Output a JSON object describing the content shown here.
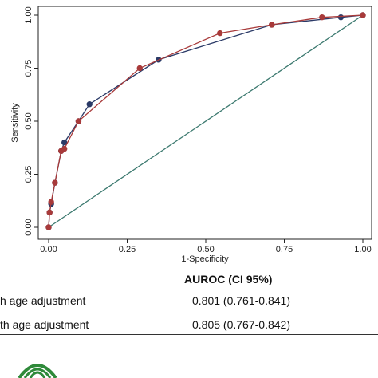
{
  "chart_data": {
    "type": "line",
    "xlabel": "1-Specificity",
    "ylabel": "Sensitivity",
    "xlim": [
      0,
      1
    ],
    "ylim": [
      0,
      1
    ],
    "x_ticks": [
      "0.00",
      "0.25",
      "0.50",
      "0.75",
      "1.00"
    ],
    "y_ticks": [
      "0.00",
      "0.25",
      "0.50",
      "0.75",
      "1.00"
    ],
    "grid": false,
    "legend": "none",
    "series": [
      {
        "color": "#2b3a67",
        "x": [
          0.0,
          0.003,
          0.008,
          0.02,
          0.04,
          0.05,
          0.095,
          0.13,
          0.35,
          0.71,
          0.93,
          1.0
        ],
        "y": [
          0.0,
          0.07,
          0.11,
          0.21,
          0.36,
          0.4,
          0.5,
          0.58,
          0.79,
          0.955,
          0.99,
          1.0
        ]
      },
      {
        "color": "#a83a3a",
        "x": [
          0.0,
          0.003,
          0.008,
          0.02,
          0.04,
          0.05,
          0.095,
          0.29,
          0.545,
          0.71,
          0.87,
          1.0
        ],
        "y": [
          0.0,
          0.07,
          0.12,
          0.21,
          0.36,
          0.37,
          0.5,
          0.75,
          0.915,
          0.955,
          0.99,
          1.0
        ]
      },
      {
        "color": "#3d7a70",
        "x": [
          0,
          1
        ],
        "y": [
          0,
          1
        ]
      }
    ]
  },
  "table": {
    "header": "AUROC (CI 95%)",
    "rows": [
      {
        "label": "h age adjustment",
        "value": "0.801 (0.761-0.841)"
      },
      {
        "label": "th age adjustment",
        "value": "0.805 (0.767-0.842)"
      }
    ]
  }
}
